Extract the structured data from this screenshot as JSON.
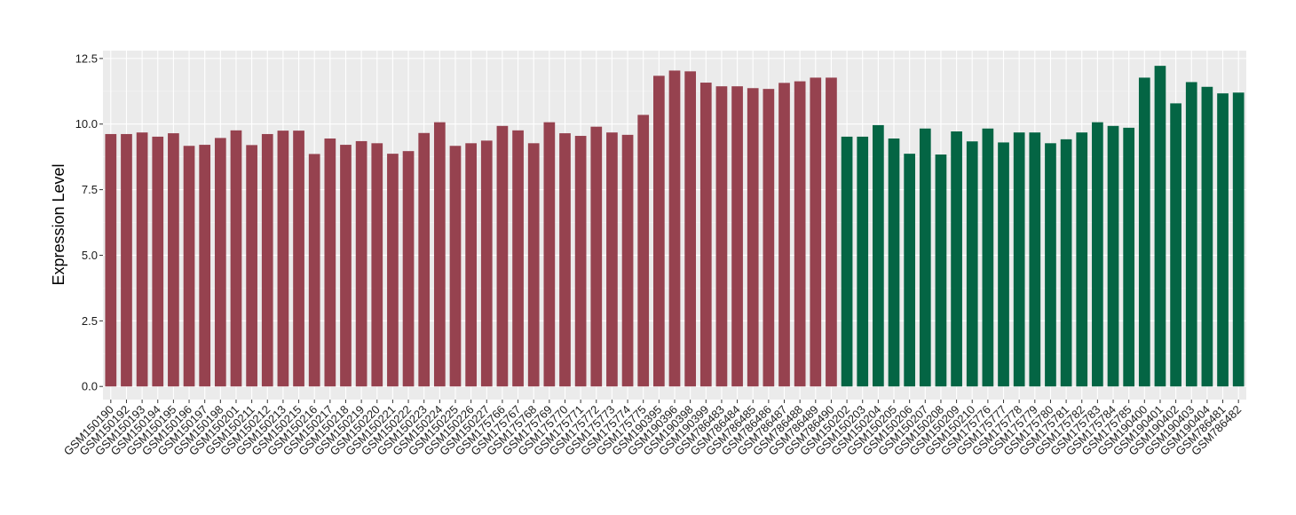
{
  "chart_data": {
    "type": "bar",
    "ylabel": "Expression Level",
    "xlabel": "",
    "ylim": [
      -0.5,
      12.8
    ],
    "yticks": [
      0.0,
      2.5,
      5.0,
      7.5,
      10.0,
      12.5
    ],
    "ytick_labels": [
      "0.0",
      "2.5",
      "5.0",
      "7.5",
      "10.0",
      "12.5"
    ],
    "grid": true,
    "legend": "none",
    "group_colors": [
      "#96424F",
      "#046544"
    ],
    "categories": [
      "GSM150190",
      "GSM150192",
      "GSM150193",
      "GSM150194",
      "GSM150195",
      "GSM150196",
      "GSM150197",
      "GSM150198",
      "GSM150201",
      "GSM150211",
      "GSM150212",
      "GSM150213",
      "GSM150215",
      "GSM150216",
      "GSM150217",
      "GSM150218",
      "GSM150219",
      "GSM150220",
      "GSM150221",
      "GSM150222",
      "GSM150223",
      "GSM150224",
      "GSM150225",
      "GSM150226",
      "GSM150227",
      "GSM175766",
      "GSM175767",
      "GSM175768",
      "GSM175769",
      "GSM175770",
      "GSM175771",
      "GSM175772",
      "GSM175773",
      "GSM175774",
      "GSM175775",
      "GSM190395",
      "GSM190396",
      "GSM190398",
      "GSM190399",
      "GSM786483",
      "GSM786484",
      "GSM786485",
      "GSM786486",
      "GSM786487",
      "GSM786488",
      "GSM786489",
      "GSM786490",
      "GSM150202",
      "GSM150203",
      "GSM150204",
      "GSM150205",
      "GSM150206",
      "GSM150207",
      "GSM150208",
      "GSM150209",
      "GSM150210",
      "GSM175776",
      "GSM175777",
      "GSM175778",
      "GSM175779",
      "GSM175780",
      "GSM175781",
      "GSM175782",
      "GSM175783",
      "GSM175784",
      "GSM175785",
      "GSM190400",
      "GSM190401",
      "GSM190402",
      "GSM190403",
      "GSM190404",
      "GSM786481",
      "GSM786482"
    ],
    "values": [
      9.62,
      9.62,
      9.68,
      9.52,
      9.65,
      9.17,
      9.21,
      9.47,
      9.76,
      9.2,
      9.62,
      9.75,
      9.75,
      8.86,
      9.45,
      9.21,
      9.35,
      9.27,
      8.87,
      8.97,
      9.66,
      10.07,
      9.17,
      9.27,
      9.37,
      9.93,
      9.76,
      9.27,
      10.07,
      9.65,
      9.55,
      9.9,
      9.68,
      9.59,
      10.35,
      11.84,
      12.04,
      12.01,
      11.58,
      11.44,
      11.44,
      11.37,
      11.34,
      11.57,
      11.63,
      11.77,
      11.77,
      9.52,
      9.52,
      9.96,
      9.45,
      8.87,
      9.83,
      8.84,
      9.72,
      9.34,
      9.83,
      9.3,
      9.68,
      9.68,
      9.27,
      9.42,
      9.68,
      10.07,
      9.93,
      9.86,
      11.77,
      12.22,
      10.79,
      11.6,
      11.42,
      11.17,
      11.2
    ],
    "groups": [
      0,
      0,
      0,
      0,
      0,
      0,
      0,
      0,
      0,
      0,
      0,
      0,
      0,
      0,
      0,
      0,
      0,
      0,
      0,
      0,
      0,
      0,
      0,
      0,
      0,
      0,
      0,
      0,
      0,
      0,
      0,
      0,
      0,
      0,
      0,
      0,
      0,
      0,
      0,
      0,
      0,
      0,
      0,
      0,
      0,
      0,
      0,
      1,
      1,
      1,
      1,
      1,
      1,
      1,
      1,
      1,
      1,
      1,
      1,
      1,
      1,
      1,
      1,
      1,
      1,
      1,
      1,
      1,
      1,
      1,
      1,
      1,
      1
    ]
  }
}
